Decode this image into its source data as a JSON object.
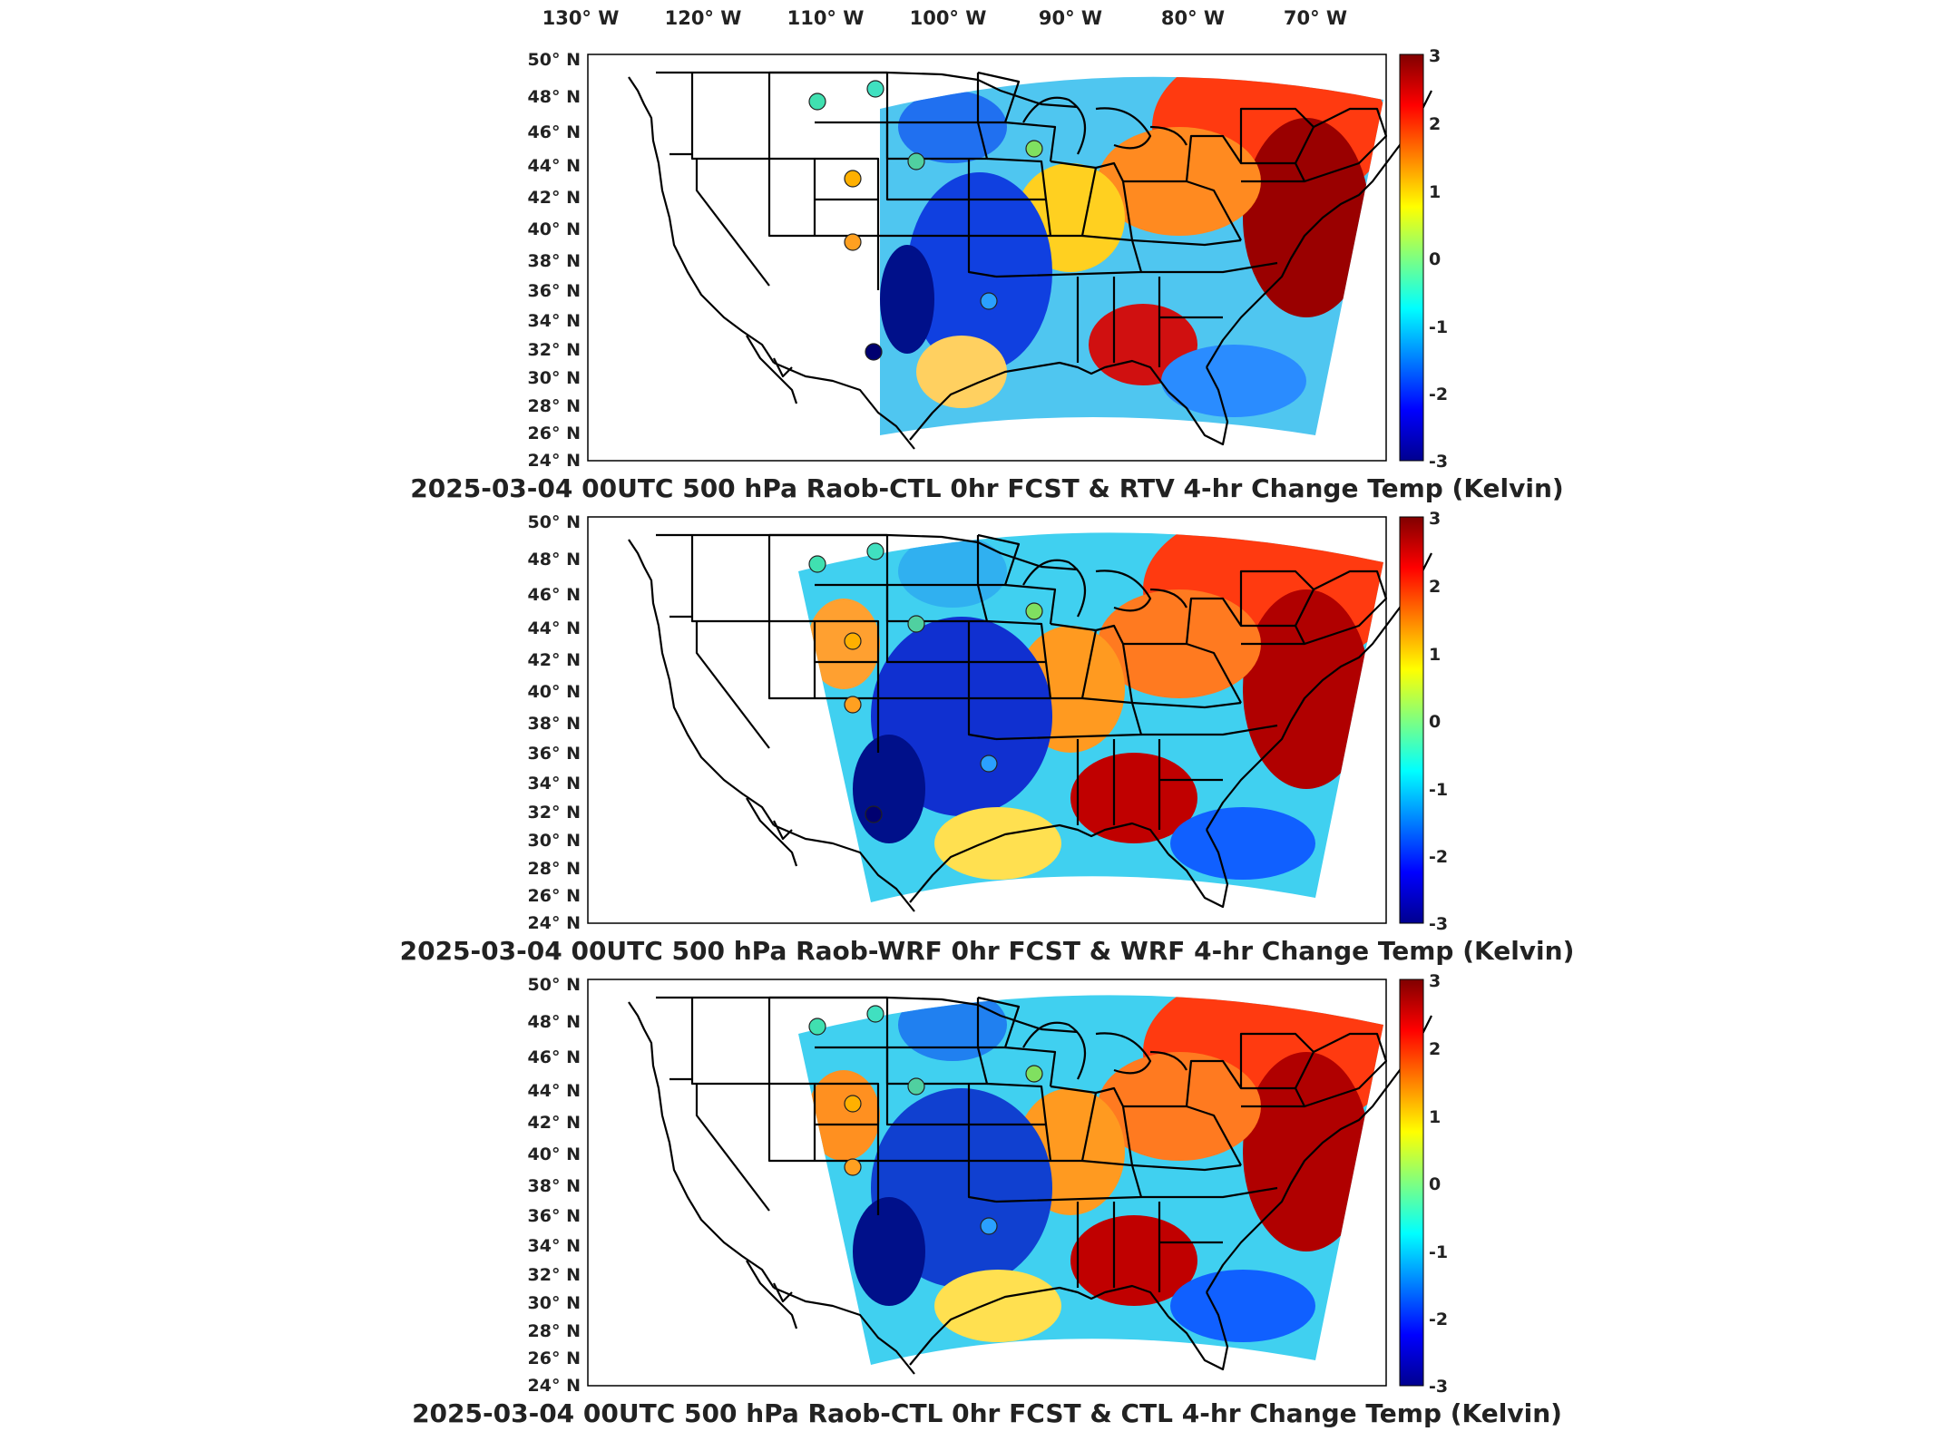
{
  "lon_labels": [
    "130° W",
    "120° W",
    "110° W",
    "100° W",
    "90° W",
    "80° W",
    "70° W"
  ],
  "lat_labels": [
    "50° N",
    "48° N",
    "46° N",
    "44° N",
    "42° N",
    "40° N",
    "38° N",
    "36° N",
    "34° N",
    "32° N",
    "30° N",
    "28° N",
    "26° N",
    "24° N"
  ],
  "colorbar": {
    "ticks": [
      "3",
      "2",
      "1",
      "0",
      "-1",
      "-2",
      "-3"
    ],
    "range": [
      -3,
      3
    ],
    "colormap": "jet",
    "colors": [
      "#00008f",
      "#0000ff",
      "#00ffff",
      "#ffff00",
      "#ff0000",
      "#800000"
    ]
  },
  "panels": [
    {
      "title": "2025-03-04 00UTC 500 hPa Raob-CTL 0hr FCST & RTV 4-hr Change Temp (Kelvin)"
    },
    {
      "title": "2025-03-04 00UTC 500 hPa Raob-WRF 0hr FCST & WRF 4-hr Change Temp (Kelvin)"
    },
    {
      "title": "2025-03-04 00UTC 500 hPa Raob-CTL 0hr FCST & CTL 4-hr Change Temp (Kelvin)"
    }
  ],
  "map_data": {
    "projection": "lambert-like",
    "lon_range": [
      -130,
      -65
    ],
    "lat_range": [
      24,
      50
    ],
    "raob_stations": [
      {
        "lon": -112.0,
        "lat": 47.5
      },
      {
        "lon": -108.5,
        "lat": 48.2
      },
      {
        "lon": -109.5,
        "lat": 43.2
      },
      {
        "lon": -110.0,
        "lat": 39.2
      },
      {
        "lon": -106.0,
        "lat": 44.2
      },
      {
        "lon": -96.5,
        "lat": 45.0
      },
      {
        "lon": -97.5,
        "lat": 35.4
      },
      {
        "lon": -106.5,
        "lat": 32.0
      }
    ]
  }
}
